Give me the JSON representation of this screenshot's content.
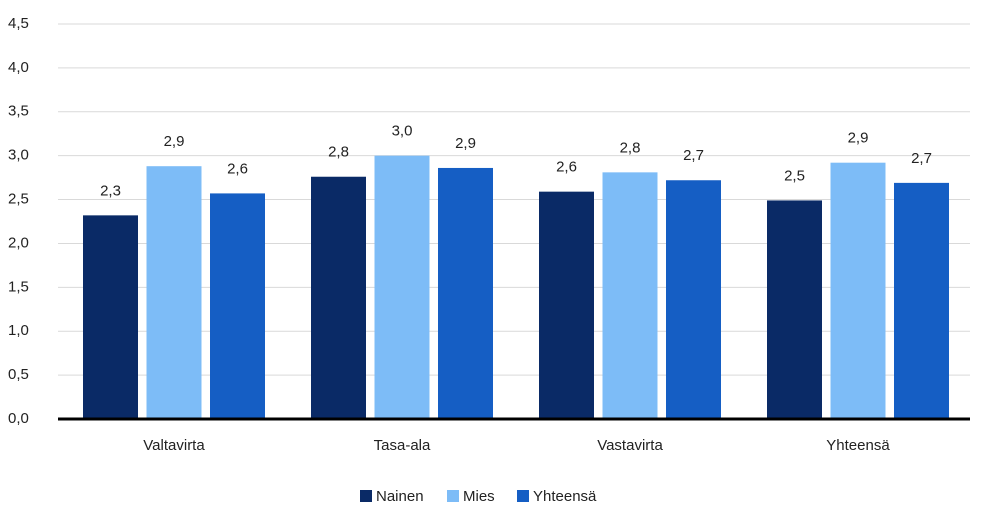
{
  "chart_data": {
    "type": "bar",
    "categories": [
      "Valtavirta",
      "Tasa-ala",
      "Vastavirta",
      "Yhteensä"
    ],
    "series": [
      {
        "name": "Nainen",
        "color": "#0a2a66",
        "values": [
          2.32,
          2.76,
          2.59,
          2.49
        ],
        "value_labels": [
          "2,3",
          "2,8",
          "2,6",
          "2,5"
        ]
      },
      {
        "name": "Mies",
        "color": "#7dbcf7",
        "values": [
          2.88,
          3.0,
          2.81,
          2.92
        ],
        "value_labels": [
          "2,9",
          "3,0",
          "2,8",
          "2,9"
        ]
      },
      {
        "name": "Yhteensä",
        "color": "#155ec4",
        "values": [
          2.57,
          2.86,
          2.72,
          2.69
        ],
        "value_labels": [
          "2,6",
          "2,9",
          "2,7",
          "2,7"
        ]
      }
    ],
    "ylim": [
      0,
      4.5
    ],
    "yticks": [
      {
        "value": 0,
        "label": "0,0"
      },
      {
        "value": 0.5,
        "label": "0,5"
      },
      {
        "value": 1,
        "label": "1,0"
      },
      {
        "value": 1.5,
        "label": "1,5"
      },
      {
        "value": 2,
        "label": "2,0"
      },
      {
        "value": 2.5,
        "label": "2,5"
      },
      {
        "value": 3,
        "label": "3,0"
      },
      {
        "value": 3.5,
        "label": "3,5"
      },
      {
        "value": 4,
        "label": "4,0"
      },
      {
        "value": 4.5,
        "label": "4,5"
      }
    ],
    "grid": true,
    "legend": "bottom"
  }
}
